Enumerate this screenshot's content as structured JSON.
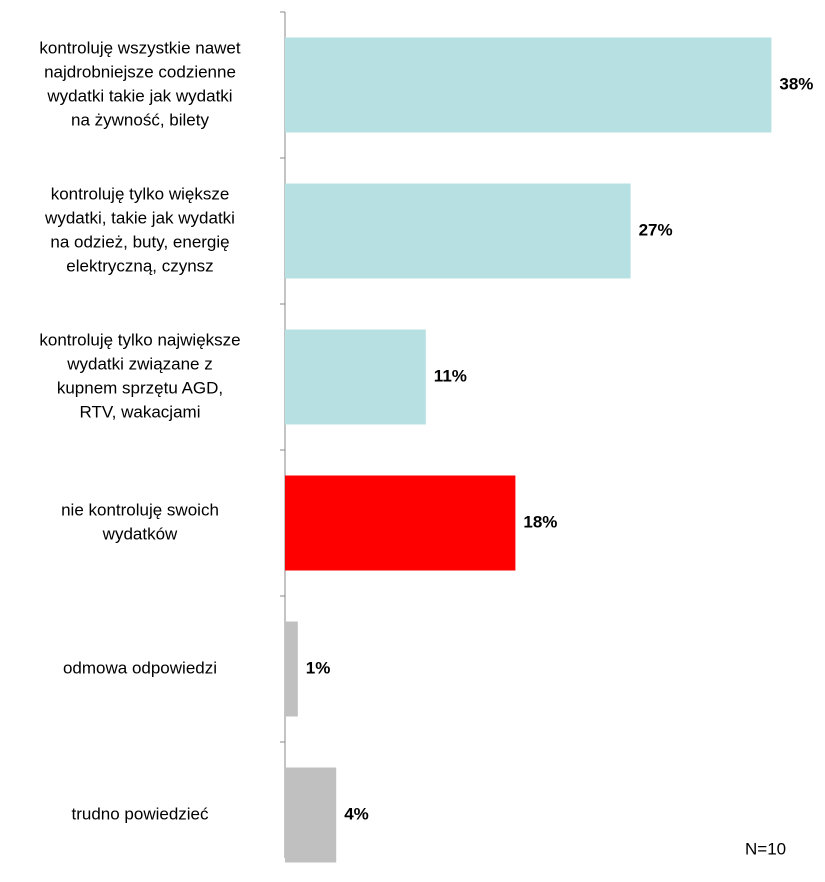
{
  "chart_data": {
    "type": "bar",
    "orientation": "horizontal",
    "categories": [
      [
        "kontroluję wszystkie nawet",
        "najdrobniejsze codzienne",
        "wydatki takie jak wydatki",
        "na żywność, bilety"
      ],
      [
        "kontroluję tylko większe",
        "wydatki, takie jak wydatki",
        "na odzież, buty, energię",
        "elektryczną, czynsz"
      ],
      [
        "kontroluję tylko największe",
        "wydatki związane z",
        "kupnem sprzętu AGD,",
        "RTV, wakacjami"
      ],
      [
        "nie kontroluję swoich",
        "wydatków"
      ],
      [
        "odmowa odpowiedzi"
      ],
      [
        "trudno powiedzieć"
      ]
    ],
    "values": [
      38,
      27,
      11,
      18,
      1,
      4
    ],
    "value_labels": [
      "38%",
      "27%",
      "11%",
      "18%",
      "1%",
      "4%"
    ],
    "colors": [
      "#b7e0e2",
      "#b7e0e2",
      "#b7e0e2",
      "#ff0000",
      "#c0c0c0",
      "#c0c0c0"
    ],
    "annotation": "N=10"
  }
}
